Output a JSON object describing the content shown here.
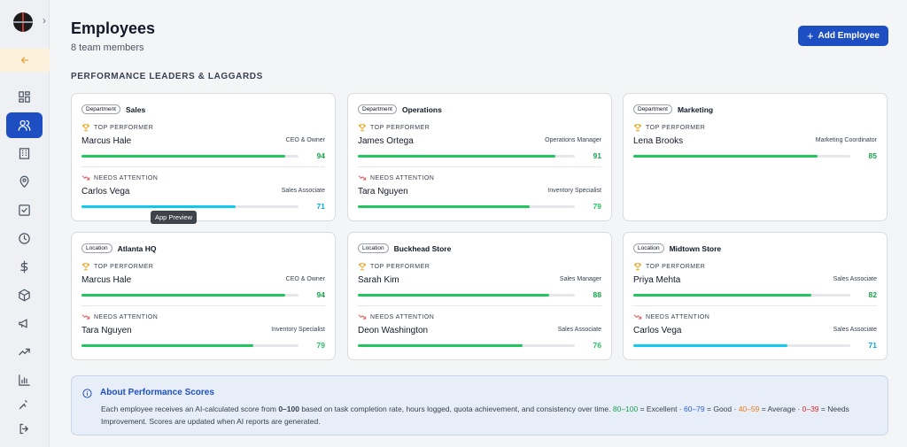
{
  "header": {
    "title": "Employees",
    "subtitle": "8 team members",
    "add_button": "Add Employee"
  },
  "section_title": "PERFORMANCE LEADERS & LAGGARDS",
  "labels": {
    "top": "TOP PERFORMER",
    "needs": "NEEDS ATTENTION"
  },
  "tooltip": "App Preview",
  "cards": [
    {
      "chip": "Department",
      "name": "Sales",
      "top": {
        "name": "Marcus Hale",
        "role": "CEO & Owner",
        "score": 94
      },
      "needs": {
        "name": "Carlos Vega",
        "role": "Sales Associate",
        "score": 71
      }
    },
    {
      "chip": "Department",
      "name": "Operations",
      "top": {
        "name": "James Ortega",
        "role": "Operations Manager",
        "score": 91
      },
      "needs": {
        "name": "Tara Nguyen",
        "role": "Inventory Specialist",
        "score": 79
      }
    },
    {
      "chip": "Department",
      "name": "Marketing",
      "top": {
        "name": "Lena Brooks",
        "role": "Marketing Coordinator",
        "score": 85
      }
    },
    {
      "chip": "Location",
      "name": "Atlanta HQ",
      "top": {
        "name": "Marcus Hale",
        "role": "CEO & Owner",
        "score": 94
      },
      "needs": {
        "name": "Tara Nguyen",
        "role": "Inventory Specialist",
        "score": 79
      }
    },
    {
      "chip": "Location",
      "name": "Buckhead Store",
      "top": {
        "name": "Sarah Kim",
        "role": "Sales Manager",
        "score": 88
      },
      "needs": {
        "name": "Deon Washington",
        "role": "Sales Associate",
        "score": 76
      }
    },
    {
      "chip": "Location",
      "name": "Midtown Store",
      "top": {
        "name": "Priya Mehta",
        "role": "Sales Associate",
        "score": 82
      },
      "needs": {
        "name": "Carlos Vega",
        "role": "Sales Associate",
        "score": 71
      }
    }
  ],
  "info": {
    "title": "About Performance Scores",
    "line1": "Each employee receives an AI-calculated score from ",
    "range": "0–100",
    "line2": " based on task completion rate, hours logged, quota achievement, and consistency over time. ",
    "excellent_range": "80–100",
    "excellent_text": " = Excellent",
    "sep1": " · ",
    "good_range": "60–79",
    "good_text": " = Good",
    "sep2": " · ",
    "average_range": "40–59",
    "average_text": " = Average",
    "sep3": " · ",
    "needs_range": "0–39",
    "needs_text": " = Needs Improvement. Scores are updated when AI reports are generated."
  },
  "colors": {
    "primary": "#1e4fc2",
    "bar_green": "#22c55e",
    "bar_cyan": "#0ecaf0",
    "score_green": "#16a34a",
    "score_cyan": "#0aa8d8",
    "score_green_light": "#22c55e"
  },
  "icons": [
    "logo",
    "chevron-right-icon",
    "arrow-left-icon",
    "dashboard-icon",
    "users-icon",
    "building-icon",
    "map-pin-icon",
    "check-square-icon",
    "clock-icon",
    "dollar-icon",
    "box-icon",
    "megaphone-icon",
    "trending-up-icon",
    "bar-chart-icon",
    "ai-sparkle-icon",
    "logout-icon",
    "trophy-icon",
    "trending-down-icon",
    "info-icon",
    "plus-icon"
  ]
}
